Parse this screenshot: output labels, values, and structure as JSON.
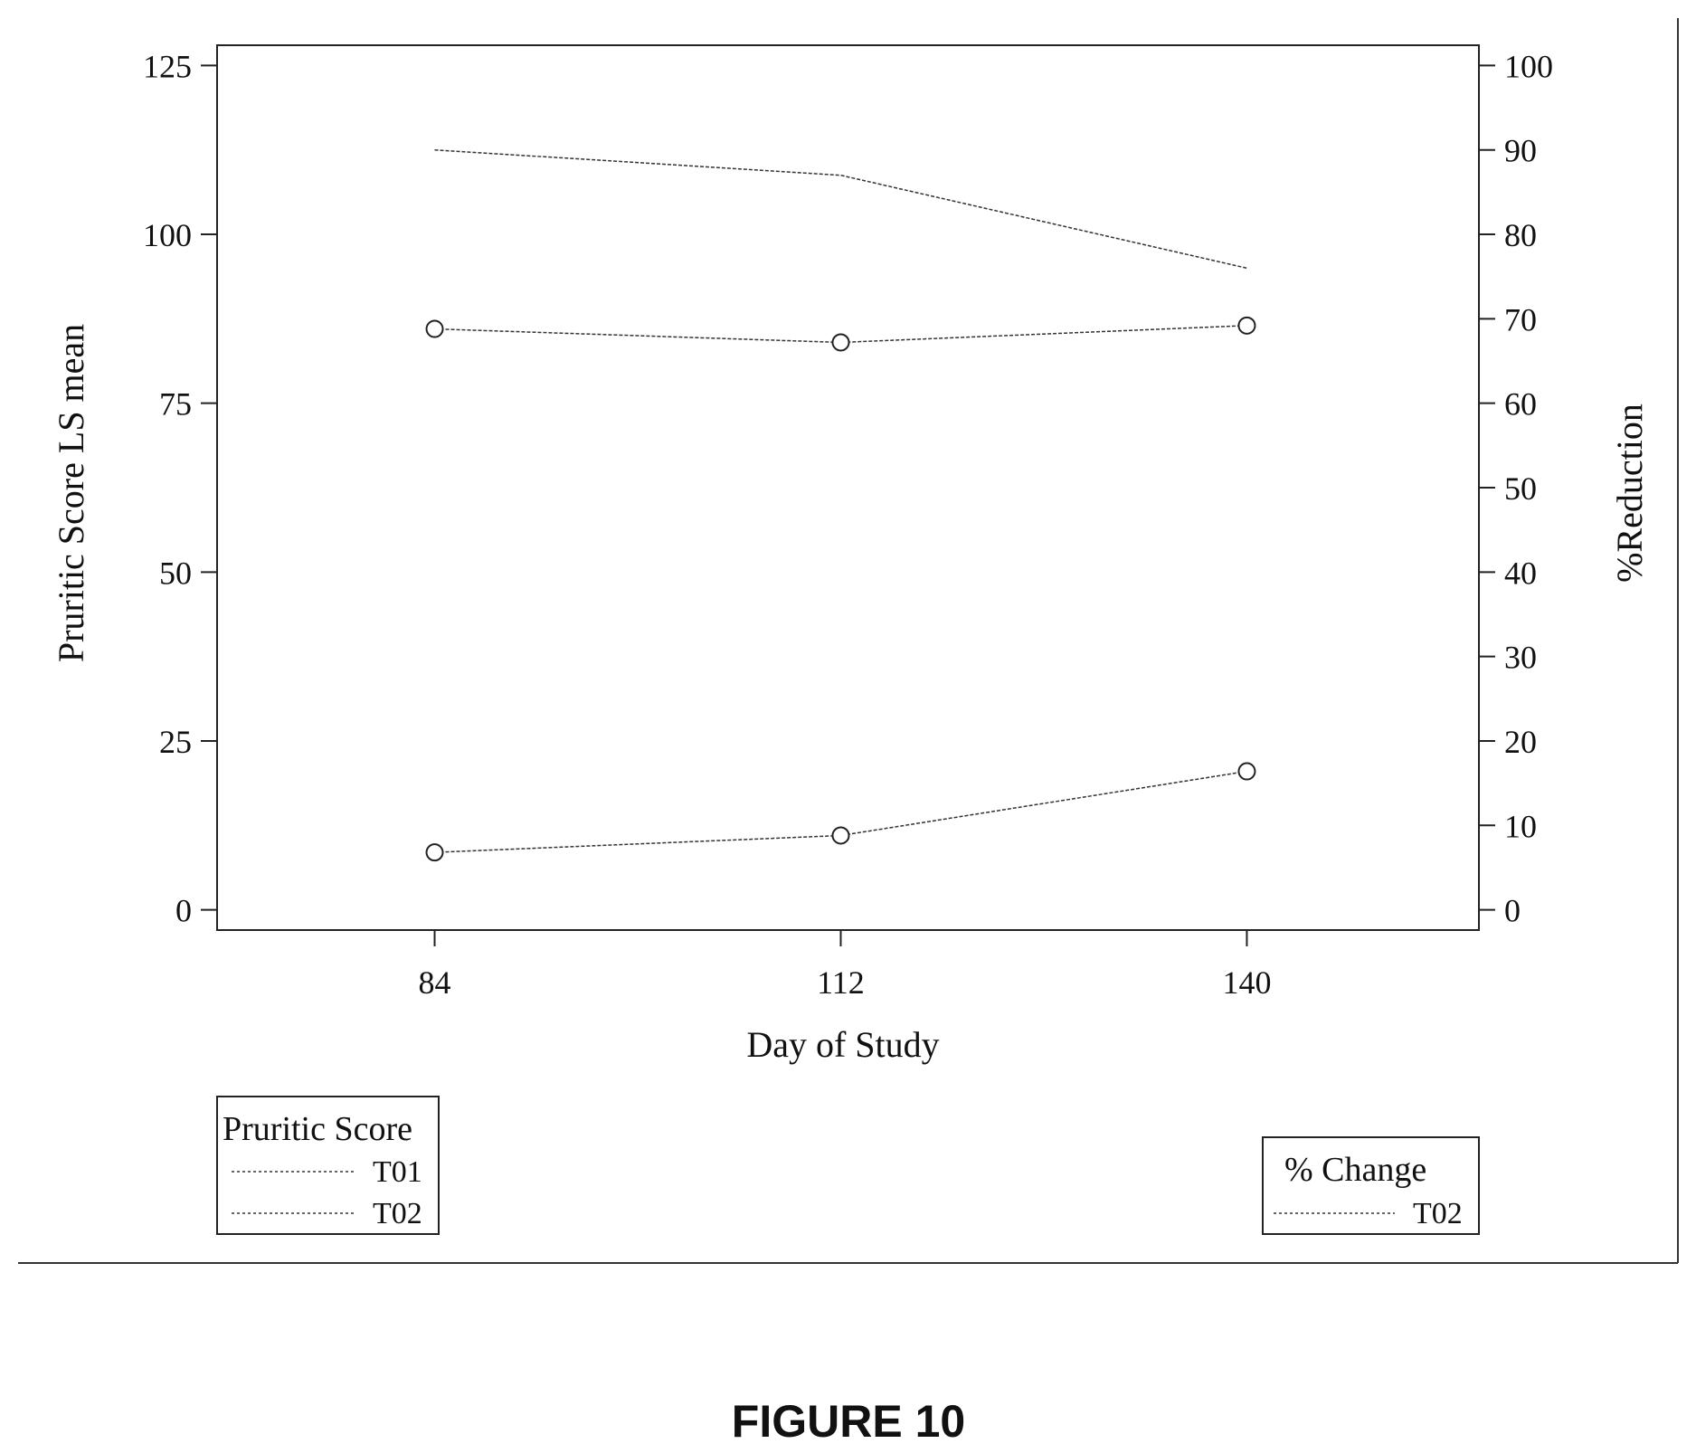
{
  "chart_data": {
    "type": "line",
    "x": [
      84,
      112,
      140
    ],
    "xlabel": "Day of Study",
    "xticks": [
      "84",
      "112",
      "140"
    ],
    "xlim": [
      69,
      156
    ],
    "ylabel": "Pruritic Score LS mean",
    "ylim": [
      -3,
      128
    ],
    "yticks": [
      0,
      25,
      50,
      75,
      100,
      125
    ],
    "y2label": "%Reduction",
    "y2lim": [
      -2.4,
      102.4
    ],
    "y2ticks": [
      0,
      10,
      20,
      30,
      40,
      50,
      60,
      70,
      80,
      90,
      100
    ],
    "grid": false,
    "series": [
      {
        "name": "T01",
        "group": "Pruritic Score",
        "axis": "left",
        "values": [
          86,
          84,
          86.5
        ],
        "markers": true
      },
      {
        "name": "T02",
        "group": "Pruritic Score",
        "axis": "left",
        "values": [
          8.5,
          11,
          20.5
        ],
        "markers": true
      },
      {
        "name": "T02",
        "group": "% Change",
        "axis": "right",
        "values": [
          90,
          87,
          76
        ],
        "markers": false
      }
    ],
    "legends": [
      {
        "title": "Pruritic Score",
        "entries": [
          "T01",
          "T02"
        ],
        "placement": "bottom-left"
      },
      {
        "title": "% Change",
        "entries": [
          "T02"
        ],
        "placement": "bottom-right"
      }
    ],
    "color": "#333333"
  },
  "caption": "FIGURE 10"
}
